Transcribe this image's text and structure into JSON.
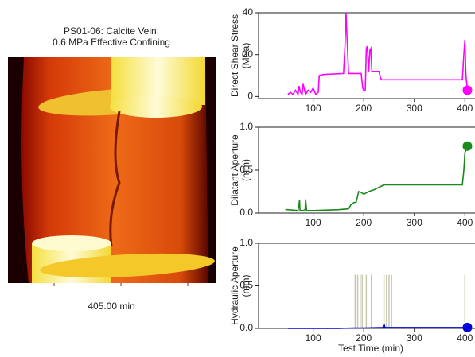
{
  "figure": {
    "title": [
      "PS01-06: Calcite Vein:",
      "0.6 MPa Effective Confining"
    ],
    "caption": "405.00 min"
  },
  "chart_data": [
    {
      "type": "line",
      "ylabel": [
        "Direct Shear Stress",
        "(MPa)"
      ],
      "xlim": [
        -8,
        420
      ],
      "xticks": [
        100,
        200,
        300,
        400
      ],
      "ylim": [
        -1,
        40
      ],
      "yticks": [
        0,
        20,
        40
      ],
      "series": [
        {
          "color": "#ff00ff",
          "x": [
            50,
            55,
            60,
            65,
            70,
            72,
            75,
            78,
            80,
            85,
            90,
            95,
            100,
            105,
            110,
            112,
            120,
            160,
            163,
            165,
            167,
            170,
            175,
            195,
            198,
            200,
            203,
            205,
            207,
            210,
            212,
            214,
            216,
            220,
            230,
            233,
            235,
            300,
            395,
            398,
            400,
            402,
            405
          ],
          "values": [
            1,
            2,
            1,
            3,
            1,
            5,
            2,
            1,
            6,
            1,
            3,
            2,
            4,
            1,
            2,
            10,
            10.5,
            11,
            25,
            40,
            28,
            11,
            11,
            11,
            4,
            3,
            3,
            23,
            24,
            12,
            22,
            23,
            12,
            12,
            12,
            9,
            8,
            8,
            8,
            20,
            27,
            10,
            3
          ]
        }
      ]
    },
    {
      "type": "line",
      "ylabel": [
        "Dilatant Aperture",
        "(mm)"
      ],
      "xlim": [
        -8,
        420
      ],
      "xticks": [
        100,
        200,
        300,
        400
      ],
      "ylim": [
        0,
        1
      ],
      "yticks": [
        {
          "value": 0,
          "label": "0.0"
        },
        {
          "value": 0.5,
          "label": "0.5"
        },
        {
          "value": 1,
          "label": "1.0"
        }
      ],
      "series": [
        {
          "color": "#1a8a1a",
          "x": [
            45,
            50,
            70,
            73,
            74,
            80,
            84,
            85,
            87,
            100,
            150,
            170,
            175,
            180,
            185,
            190,
            195,
            200,
            210,
            220,
            230,
            240,
            250,
            300,
            395,
            398,
            400,
            405
          ],
          "values": [
            0.04,
            0.04,
            0.03,
            0.15,
            0.03,
            0.03,
            0.04,
            0.16,
            0.03,
            0.03,
            0.04,
            0.05,
            0.1,
            0.12,
            0.13,
            0.25,
            0.24,
            0.22,
            0.25,
            0.27,
            0.3,
            0.33,
            0.33,
            0.33,
            0.33,
            0.5,
            0.7,
            0.78
          ]
        }
      ]
    },
    {
      "type": "line",
      "ylabel": [
        "Hydraulic Aperture",
        "(mm)"
      ],
      "xlabel": "Test Time (min)",
      "xlim": [
        -8,
        420
      ],
      "xticks": [
        100,
        200,
        300,
        400
      ],
      "ylim": [
        0,
        1
      ],
      "yticks": [
        {
          "value": 0,
          "label": "0.0"
        },
        {
          "value": 0.5,
          "label": "0.5"
        },
        {
          "value": 1,
          "label": "1.0"
        }
      ],
      "vlines": {
        "color": "#c8c8b0",
        "top": 0.63,
        "x": [
          183,
          188,
          193,
          197,
          205,
          215,
          240,
          245,
          250,
          255,
          400
        ]
      },
      "series": [
        {
          "color": "#0000e0",
          "x": [
            50,
            100,
            150,
            180,
            200,
            238,
            240,
            242,
            300,
            400,
            405
          ],
          "values": [
            0,
            0,
            0,
            0.005,
            0.005,
            0.01,
            0.05,
            0.01,
            0.01,
            0.01,
            0.01
          ]
        }
      ]
    }
  ]
}
